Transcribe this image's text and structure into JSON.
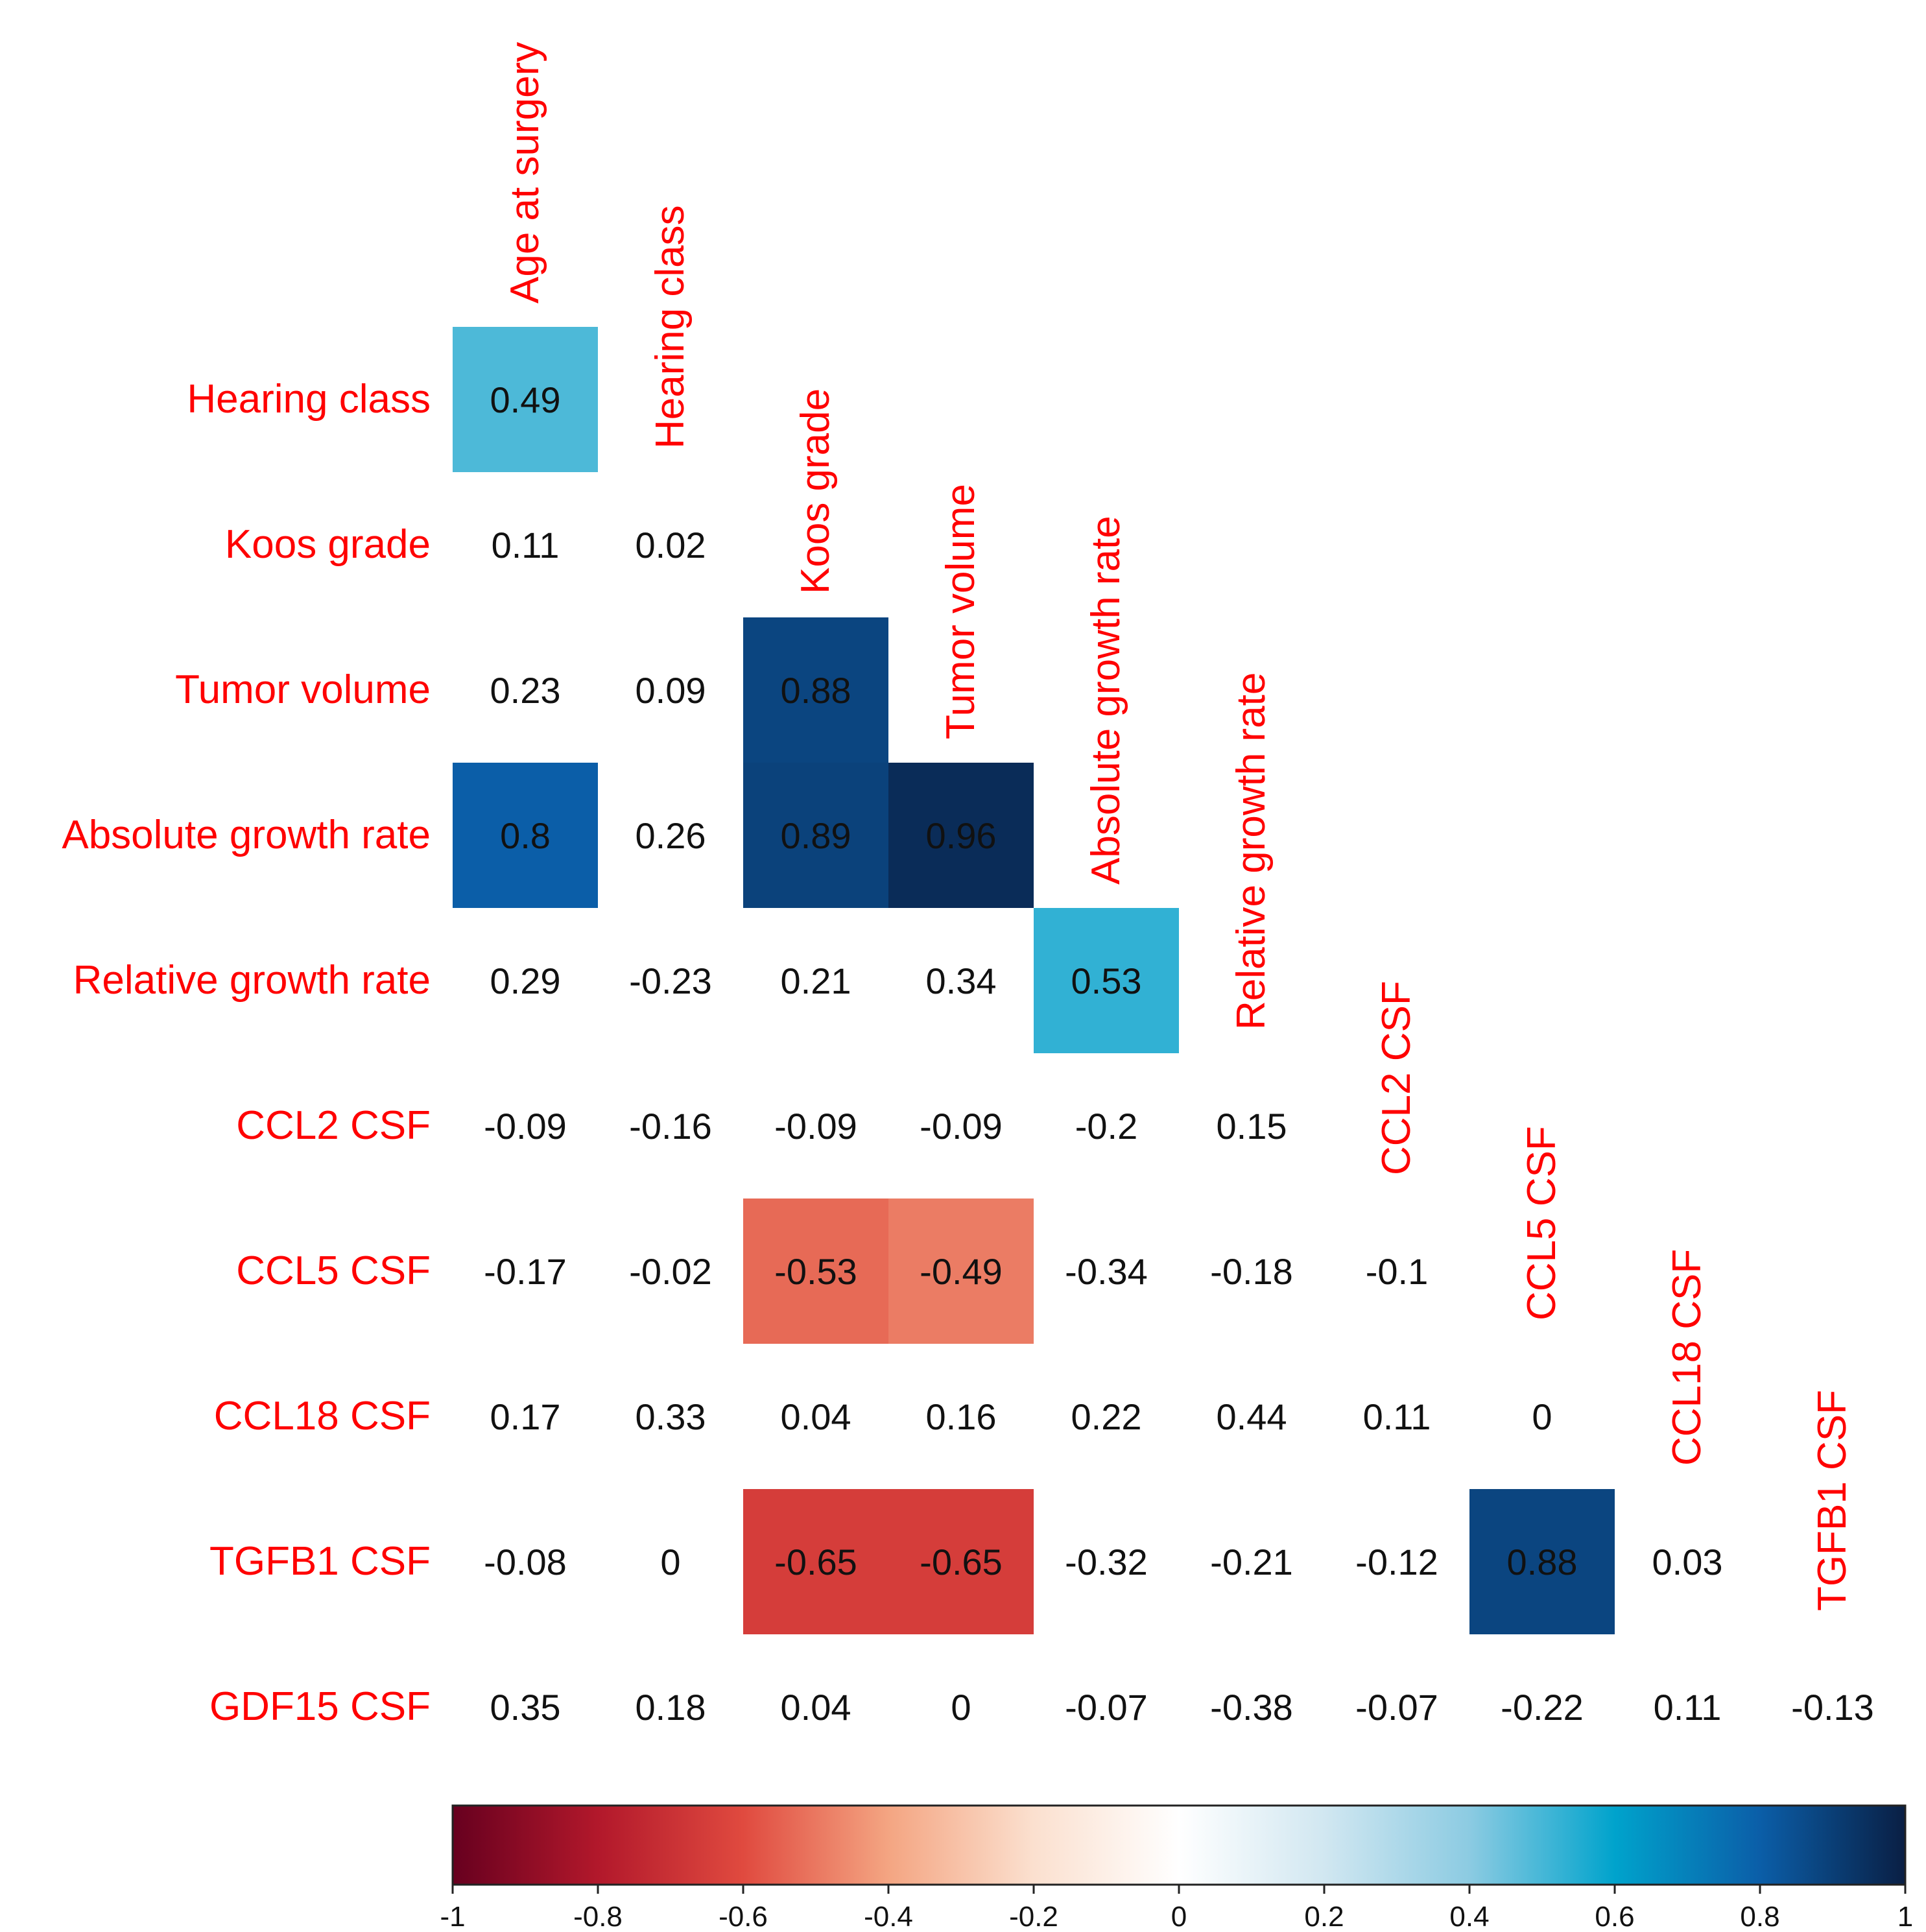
{
  "chart_data": {
    "type": "heatmap",
    "subtype": "lower-triangle correlation matrix",
    "variables": [
      "Age at surgery",
      "Hearing class",
      "Koos grade",
      "Tumor volume",
      "Absolute growth rate",
      "Relative growth rate",
      "CCL2 CSF",
      "CCL5 CSF",
      "CCL18 CSF",
      "TGFB1 CSF",
      "GDF15 CSF"
    ],
    "row_labels": [
      "Hearing class",
      "Koos grade",
      "Tumor volume",
      "Absolute growth rate",
      "Relative growth rate",
      "CCL2 CSF",
      "CCL5 CSF",
      "CCL18 CSF",
      "TGFB1 CSF",
      "GDF15 CSF"
    ],
    "column_labels": [
      "Age at surgery",
      "Hearing class",
      "Koos grade",
      "Tumor volume",
      "Absolute growth rate",
      "Relative growth rate",
      "CCL2 CSF",
      "CCL5 CSF",
      "CCL18 CSF",
      "TGFB1 CSF"
    ],
    "matrix": [
      [
        "0.49"
      ],
      [
        "0.11",
        "0.02"
      ],
      [
        "0.23",
        "0.09",
        "0.88"
      ],
      [
        "0.8",
        "0.26",
        "0.89",
        "0.96"
      ],
      [
        "0.29",
        "-0.23",
        "0.21",
        "0.34",
        "0.53"
      ],
      [
        "-0.09",
        "-0.16",
        "-0.09",
        "-0.09",
        "-0.2",
        "0.15"
      ],
      [
        "-0.17",
        "-0.02",
        "-0.53",
        "-0.49",
        "-0.34",
        "-0.18",
        "-0.1"
      ],
      [
        "0.17",
        "0.33",
        "0.04",
        "0.16",
        "0.22",
        "0.44",
        "0.11",
        "0"
      ],
      [
        "-0.08",
        "0",
        "-0.65",
        "-0.65",
        "-0.32",
        "-0.21",
        "-0.12",
        "0.88",
        "0.03"
      ],
      [
        "0.35",
        "0.18",
        "0.04",
        "0",
        "-0.07",
        "-0.38",
        "-0.07",
        "-0.22",
        "0.11",
        "-0.13"
      ]
    ],
    "colorbar": {
      "range": [
        -1,
        1
      ],
      "ticks": [
        "-1",
        "-0.8",
        "-0.6",
        "-0.4",
        "-0.2",
        "0",
        "0.2",
        "0.4",
        "0.6",
        "0.8",
        "1"
      ],
      "colors": {
        "neg_1": "#67001f",
        "neg_0_8": "#b2182b",
        "neg_0_6": "#e04a3f",
        "neg_0_4": "#f4a582",
        "neg_0_2": "#fbe0cf",
        "zero": "#ffffff",
        "pos_0_2": "#d1e7f1",
        "pos_0_4": "#8ccbe2",
        "pos_0_6": "#00a3cc",
        "pos_0_8": "#0b5ea8",
        "pos_1": "#0a1f44"
      }
    },
    "highlight_threshold": 0.45,
    "label_color": "#ff0000"
  }
}
